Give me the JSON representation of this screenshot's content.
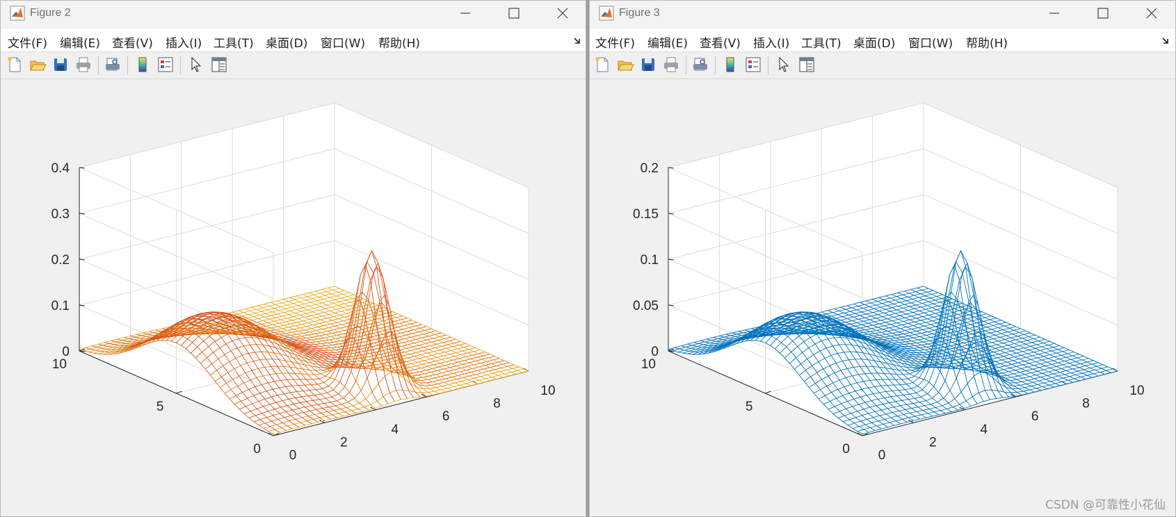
{
  "figures": [
    {
      "title": "Figure 2",
      "menu": [
        "文件(F)",
        "编辑(E)",
        "查看(V)",
        "插入(I)",
        "工具(T)",
        "桌面(D)",
        "窗口(W)",
        "帮助(H)"
      ],
      "toolbar": [
        "new-figure-icon",
        "open-file-icon",
        "save-icon",
        "print-icon",
        "print-preview-icon",
        "colorbar-icon",
        "legend-icon",
        "edit-plot-arrow-icon",
        "property-inspector-icon"
      ],
      "zticks": [
        "0",
        "0.1",
        "0.2",
        "0.3",
        "0.4"
      ],
      "yticks": [
        "10",
        "5",
        "0"
      ],
      "xticks": [
        "0",
        "2",
        "4",
        "6",
        "8",
        "10"
      ],
      "colormap": [
        "#d95319",
        "#edb120"
      ],
      "chart_data": {
        "type": "surface-mesh",
        "x_range": [
          0,
          10
        ],
        "y_range": [
          0,
          10
        ],
        "z_range": [
          0,
          0.4
        ],
        "peaks": [
          {
            "x": 1.5,
            "y": 5,
            "height": 0.15
          },
          {
            "x": 5,
            "y": 1.5,
            "height": 0.3
          }
        ],
        "grid": true
      }
    },
    {
      "title": "Figure 3",
      "menu": [
        "文件(F)",
        "编辑(E)",
        "查看(V)",
        "插入(I)",
        "工具(T)",
        "桌面(D)",
        "窗口(W)",
        "帮助(H)"
      ],
      "toolbar": [
        "new-figure-icon",
        "open-file-icon",
        "save-icon",
        "print-icon",
        "print-preview-icon",
        "colorbar-icon",
        "legend-icon",
        "edit-plot-arrow-icon",
        "property-inspector-icon"
      ],
      "zticks": [
        "0",
        "0.05",
        "0.1",
        "0.15",
        "0.2"
      ],
      "yticks": [
        "10",
        "5",
        "0"
      ],
      "xticks": [
        "0",
        "2",
        "4",
        "6",
        "8",
        "10"
      ],
      "colormap": [
        "#0072bd",
        "#0072bd"
      ],
      "chart_data": {
        "type": "surface-mesh",
        "x_range": [
          0,
          10
        ],
        "y_range": [
          0,
          10
        ],
        "z_range": [
          0,
          0.2
        ],
        "peaks": [
          {
            "x": 1.5,
            "y": 5,
            "height": 0.075
          },
          {
            "x": 5,
            "y": 1.5,
            "height": 0.15
          }
        ],
        "grid": true
      }
    }
  ],
  "watermark": "CSDN @可靠性小花仙"
}
